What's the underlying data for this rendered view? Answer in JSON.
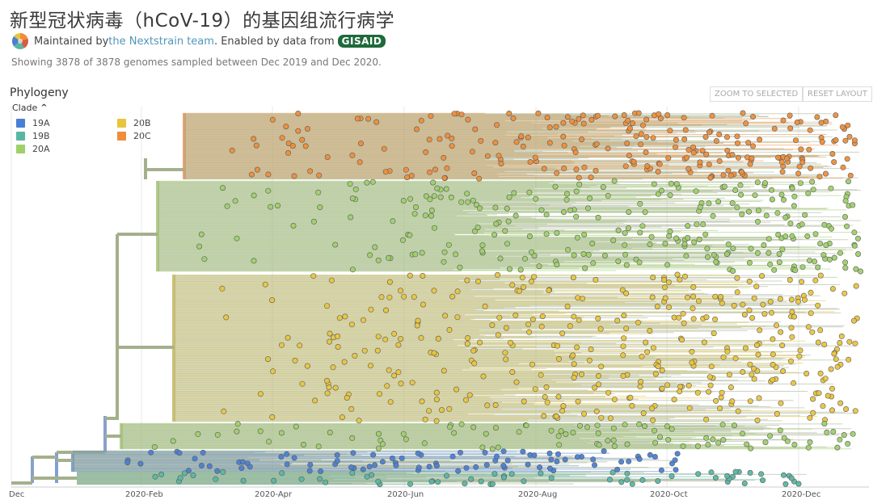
{
  "header": {
    "title": "新型冠状病毒（hCoV-19）的基因组流行病学",
    "maintained_prefix": "Maintained by ",
    "maintained_link": "the Nextstrain team",
    "enabled_text": ". Enabled by data from ",
    "gisaid_label": "GISAID",
    "summary": "Showing 3878 of 3878 genomes sampled between Dec 2019 and Dec 2020."
  },
  "panel": {
    "title": "Phylogeny",
    "zoom_label": "ZOOM TO SELECTED",
    "reset_label": "RESET LAYOUT"
  },
  "legend": {
    "title": "Clade",
    "items": [
      {
        "label": "19A",
        "color": "#4a7fd4"
      },
      {
        "label": "19B",
        "color": "#58b7a3"
      },
      {
        "label": "20A",
        "color": "#9fd06a"
      },
      {
        "label": "20B",
        "color": "#e9c53e"
      },
      {
        "label": "20C",
        "color": "#ee8e3a"
      }
    ]
  },
  "axis": {
    "labels": [
      "Dec",
      "2020-Feb",
      "2020-Apr",
      "2020-Jun",
      "2020-Aug",
      "2020-Oct",
      "2020-Dec"
    ]
  },
  "colors": {
    "branch_base": "#a4b08c",
    "grid": "#e8e8e8"
  }
}
